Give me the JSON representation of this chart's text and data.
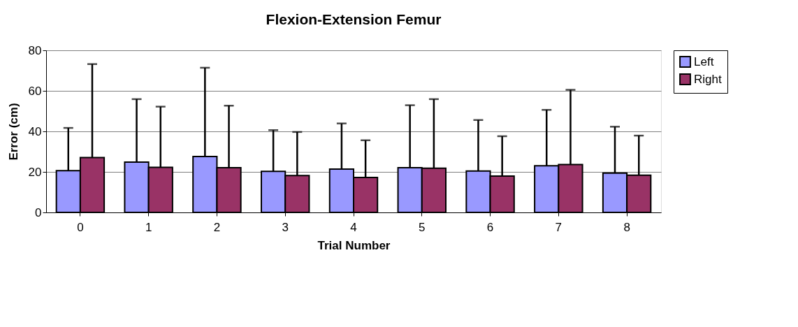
{
  "chart_data": {
    "type": "bar",
    "title": "Flexion-Extension Femur",
    "xlabel": "Trial Number",
    "ylabel": "Error (cm)",
    "categories": [
      "0",
      "1",
      "2",
      "3",
      "4",
      "5",
      "6",
      "7",
      "8"
    ],
    "series": [
      {
        "name": "Left",
        "color": "#9999ff",
        "values": [
          20.6,
          24.8,
          27.6,
          20.3,
          21.4,
          22.1,
          20.4,
          23.0,
          19.4
        ],
        "errors": [
          [
            20.6,
            41.7
          ],
          [
            24.8,
            55.9
          ],
          [
            27.6,
            71.4
          ],
          [
            20.3,
            40.6
          ],
          [
            21.4,
            43.9
          ],
          [
            22.1,
            52.9
          ],
          [
            20.4,
            45.6
          ],
          [
            23.0,
            50.6
          ],
          [
            19.4,
            42.3
          ]
        ]
      },
      {
        "name": "Right",
        "color": "#993366",
        "values": [
          27.1,
          22.2,
          22.1,
          18.2,
          17.2,
          21.8,
          17.9,
          23.6,
          18.4
        ],
        "errors": [
          [
            27.1,
            73.2
          ],
          [
            22.2,
            52.2
          ],
          [
            22.1,
            52.7
          ],
          [
            18.2,
            39.7
          ],
          [
            17.2,
            35.6
          ],
          [
            21.8,
            55.9
          ],
          [
            17.9,
            37.6
          ],
          [
            23.6,
            60.5
          ],
          [
            18.4,
            37.9
          ]
        ]
      }
    ],
    "ylim": [
      0,
      80
    ],
    "yticks": [
      0,
      20,
      40,
      60,
      80
    ],
    "grid": "y",
    "legend": "right"
  }
}
